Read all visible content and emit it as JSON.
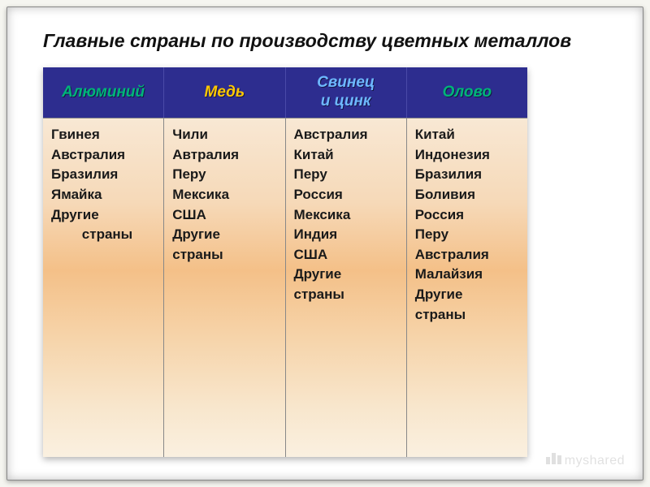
{
  "title": "Главные страны по производству цветных металлов",
  "table": {
    "header_bg": "#2d2d8f",
    "header_border": "#4a4aa8",
    "body_gradient": [
      "#f8e8d4",
      "#f6d9b8",
      "#f4c088",
      "#f6d4aa",
      "#f8e6cc",
      "#faf0e0"
    ],
    "cell_border": "#888888",
    "columns": [
      {
        "label": "Алюминий",
        "color": "#00b578",
        "items": [
          "Гвинея",
          "Австралия",
          "Бразилия",
          "Ямайка",
          "Другие",
          "        страны"
        ]
      },
      {
        "label": "Медь",
        "color": "#ffc800",
        "items": [
          "Чили",
          "Автралия",
          "Перу",
          "Мексика",
          "США",
          "Другие",
          "страны"
        ]
      },
      {
        "label": "Свинец\nи цинк",
        "color": "#6db8ff",
        "items": [
          "Австралия",
          "Китай",
          "Перу",
          "Россия",
          "Мексика",
          "Индия",
          "США",
          "Другие",
          "страны"
        ]
      },
      {
        "label": "Олово",
        "color": "#00b578",
        "items": [
          "Китай",
          "Индонезия",
          "Бразилия",
          "Боливия",
          "Россия",
          "Перу",
          "Австралия",
          "Малайзия",
          "Другие",
          "страны"
        ]
      }
    ]
  },
  "watermark": "myshared",
  "style": {
    "title_fontsize": 23,
    "header_fontsize": 19,
    "body_fontsize": 17,
    "frame_bg": "#ffffff",
    "page_bg": "#f5f5f0"
  }
}
